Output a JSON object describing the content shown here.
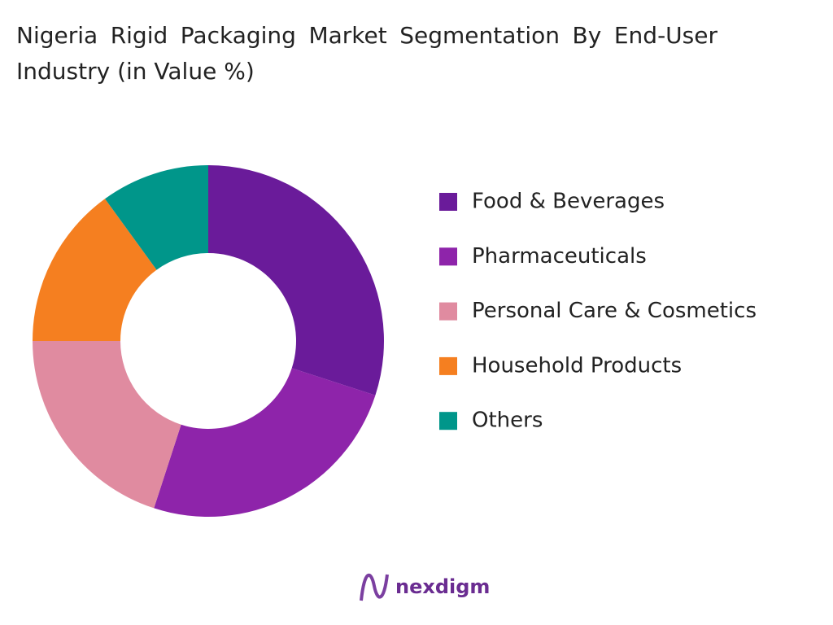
{
  "chart_data": {
    "type": "donut",
    "title": "Nigeria Rigid Packaging Market Segmentation By End-User Industry (in Value %)",
    "categories": [
      "Food & Beverages",
      "Pharmaceuticals",
      "Personal Care & Cosmetics",
      "Household Products",
      "Others"
    ],
    "values": [
      30,
      25,
      20,
      15,
      10
    ],
    "colors": [
      "#6a1b9a",
      "#8e24aa",
      "#e08ba0",
      "#f57f20",
      "#00968a"
    ],
    "legend": "right"
  },
  "brand": "nexdigm"
}
